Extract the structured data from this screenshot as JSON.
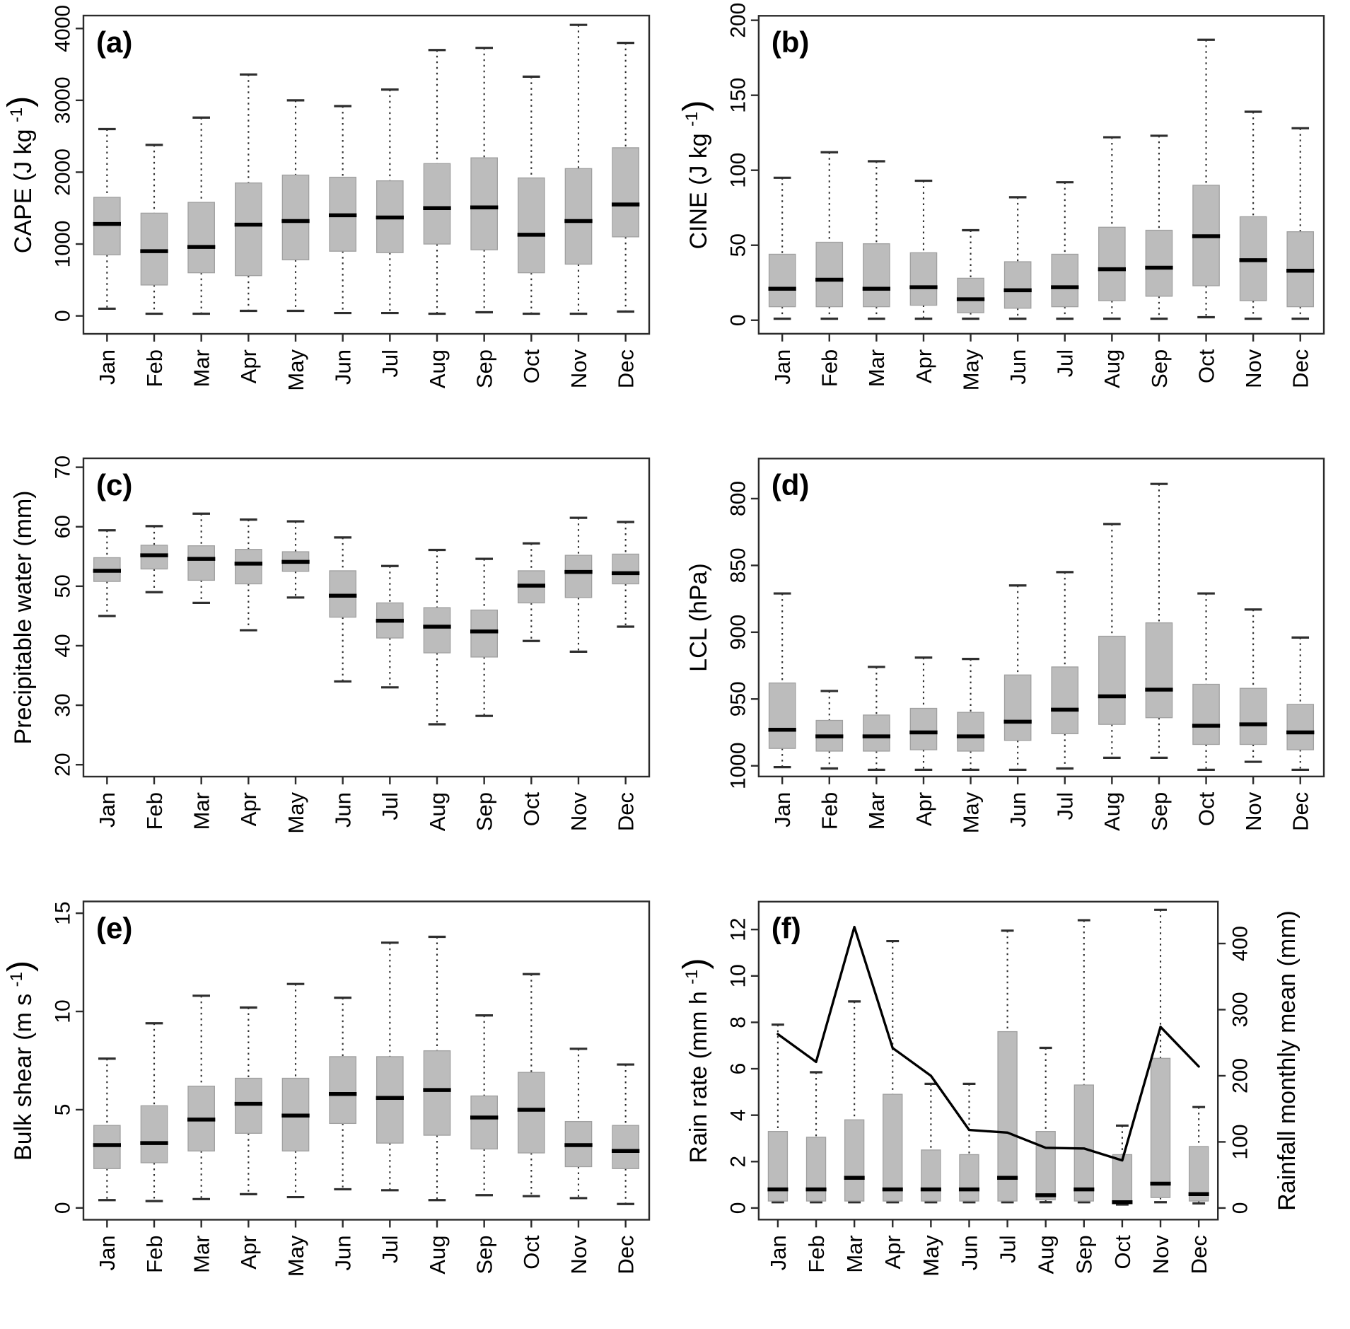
{
  "months": [
    "Jan",
    "Feb",
    "Mar",
    "Apr",
    "May",
    "Jun",
    "Jul",
    "Aug",
    "Sep",
    "Oct",
    "Nov",
    "Dec"
  ],
  "colors": {
    "box_fill": "#bcbcbc",
    "box_border": "#a0a0a0",
    "median": "#000000",
    "whisker": "#2e2e2e",
    "frame": "#2b2b2b",
    "line": "#000000"
  },
  "chart_data": [
    {
      "id": "a",
      "type": "boxplot",
      "panel_label": "(a)",
      "ylabel": {
        "pre": "CAPE (J kg ",
        "sup": "-1",
        "post": ")"
      },
      "yticks": [
        0,
        1000,
        2000,
        3000,
        4000
      ],
      "ylim": [
        0,
        4000
      ],
      "domain": [
        -250,
        4180
      ],
      "whisker_low": [
        100,
        30,
        30,
        70,
        70,
        40,
        40,
        30,
        50,
        30,
        30,
        60
      ],
      "q1": [
        850,
        430,
        600,
        560,
        780,
        900,
        880,
        1000,
        920,
        600,
        720,
        1100
      ],
      "median": [
        1280,
        900,
        960,
        1270,
        1320,
        1400,
        1370,
        1500,
        1510,
        1130,
        1320,
        1550
      ],
      "q3": [
        1650,
        1430,
        1580,
        1850,
        1960,
        1930,
        1880,
        2120,
        2200,
        1920,
        2050,
        2340
      ],
      "whisker_high": [
        2600,
        2380,
        2760,
        3360,
        3000,
        2920,
        3150,
        3700,
        3730,
        3330,
        4050,
        3800
      ]
    },
    {
      "id": "b",
      "type": "boxplot",
      "panel_label": "(b)",
      "ylabel": {
        "pre": "CINE (J kg ",
        "sup": "-1",
        "post": ")"
      },
      "yticks": [
        0,
        50,
        100,
        150,
        200
      ],
      "ylim": [
        0,
        200
      ],
      "domain": [
        -9,
        203
      ],
      "whisker_low": [
        1,
        1,
        1,
        1,
        1,
        1,
        1,
        1,
        1,
        2,
        1,
        1
      ],
      "q1": [
        9,
        9,
        9,
        10,
        5,
        8,
        9,
        13,
        16,
        23,
        13,
        9
      ],
      "median": [
        21,
        27,
        21,
        22,
        14,
        20,
        22,
        34,
        35,
        56,
        40,
        33
      ],
      "q3": [
        44,
        52,
        51,
        45,
        28,
        39,
        44,
        62,
        60,
        90,
        69,
        59
      ],
      "whisker_high": [
        95,
        112,
        106,
        93,
        60,
        82,
        92,
        122,
        123,
        187,
        139,
        128
      ]
    },
    {
      "id": "c",
      "type": "boxplot",
      "panel_label": "(c)",
      "ylabel": {
        "pre": "Precipitable water (mm)",
        "sup": "",
        "post": ""
      },
      "yticks": [
        20,
        30,
        40,
        50,
        60,
        70
      ],
      "ylim": [
        20,
        70
      ],
      "domain": [
        18,
        71.5
      ],
      "whisker_low": [
        45,
        49,
        47.2,
        42.6,
        48.1,
        34,
        33,
        26.8,
        28.2,
        40.8,
        39,
        43.2
      ],
      "q1": [
        50.8,
        52.9,
        51,
        50.4,
        52.5,
        44.8,
        41.3,
        38.8,
        38.1,
        47.2,
        48.1,
        50.4
      ],
      "median": [
        52.6,
        55.2,
        54.6,
        53.8,
        54.1,
        48.4,
        44.2,
        43.2,
        42.4,
        50.1,
        52.4,
        52.2
      ],
      "q3": [
        54.8,
        56.9,
        56.8,
        56.2,
        55.8,
        52.6,
        47.2,
        46.4,
        46,
        52.6,
        55.2,
        55.4
      ],
      "whisker_high": [
        59.4,
        60.1,
        62.2,
        61.2,
        60.9,
        58.2,
        53.4,
        56.1,
        54.6,
        57.2,
        61.5,
        60.8
      ]
    },
    {
      "id": "d",
      "type": "boxplot",
      "panel_label": "(d)",
      "ylabel": {
        "pre": "LCL (hPa)",
        "sup": "",
        "post": ""
      },
      "yticks": [
        800,
        850,
        900,
        950,
        1000
      ],
      "ylim": [
        1000,
        800
      ],
      "axis_reversed": true,
      "domain": [
        1008,
        770
      ],
      "whisker_low": [
        1001,
        1002,
        1003,
        1003,
        1003,
        1003,
        1002,
        994,
        994,
        1003,
        997,
        1003
      ],
      "q1": [
        987,
        989,
        989,
        988,
        989,
        981,
        976,
        969,
        964,
        984,
        984,
        988
      ],
      "median": [
        973,
        978,
        978,
        975,
        978,
        967,
        958,
        948,
        943,
        970,
        969,
        975
      ],
      "q3": [
        938,
        966,
        962,
        957,
        960,
        932,
        926,
        903,
        893,
        939,
        942,
        954
      ],
      "whisker_high": [
        871,
        944,
        926,
        919,
        920,
        865,
        855,
        819,
        789,
        871,
        883,
        904
      ]
    },
    {
      "id": "e",
      "type": "boxplot",
      "panel_label": "(e)",
      "ylabel": {
        "pre": "Bulk shear (m s ",
        "sup": "-1",
        "post": ")"
      },
      "yticks": [
        0,
        5,
        10,
        15
      ],
      "ylim": [
        0,
        15
      ],
      "domain": [
        -0.6,
        15.6
      ],
      "whisker_low": [
        0.4,
        0.35,
        0.45,
        0.7,
        0.55,
        0.95,
        0.9,
        0.4,
        0.65,
        0.6,
        0.5,
        0.2
      ],
      "q1": [
        2.0,
        2.3,
        2.9,
        3.8,
        2.9,
        4.3,
        3.3,
        3.7,
        3.0,
        2.8,
        2.1,
        2.0
      ],
      "median": [
        3.2,
        3.3,
        4.5,
        5.3,
        4.7,
        5.8,
        5.6,
        6.0,
        4.6,
        5.0,
        3.2,
        2.9
      ],
      "q3": [
        4.2,
        5.2,
        6.2,
        6.6,
        6.6,
        7.7,
        7.7,
        8.0,
        5.7,
        6.9,
        4.4,
        4.2
      ],
      "whisker_high": [
        7.6,
        9.4,
        10.8,
        10.2,
        11.4,
        10.7,
        13.5,
        13.8,
        9.8,
        11.9,
        8.1,
        7.3
      ]
    },
    {
      "id": "f",
      "type": "boxplot+line",
      "panel_label": "(f)",
      "ylabel": {
        "pre": "Rain rate (mm h ",
        "sup": "-1",
        "post": ")"
      },
      "yticks": [
        0,
        2,
        4,
        6,
        8,
        10,
        12
      ],
      "ylim": [
        0,
        12
      ],
      "domain": [
        -0.5,
        13.2
      ],
      "whisker_low": [
        0.25,
        0.25,
        0.25,
        0.25,
        0.25,
        0.25,
        0.25,
        0.25,
        0.25,
        0.15,
        0.25,
        0.2
      ],
      "q1": [
        0.3,
        0.3,
        0.3,
        0.3,
        0.3,
        0.3,
        0.3,
        0.35,
        0.3,
        0.2,
        0.45,
        0.3
      ],
      "median": [
        0.8,
        0.8,
        1.3,
        0.8,
        0.8,
        0.8,
        1.3,
        0.55,
        0.8,
        0.25,
        1.05,
        0.6
      ],
      "q3": [
        3.3,
        3.05,
        3.8,
        4.9,
        2.5,
        2.3,
        7.6,
        3.3,
        5.3,
        2.3,
        6.45,
        2.65
      ],
      "whisker_high": [
        7.9,
        5.85,
        8.9,
        11.5,
        5.35,
        5.35,
        11.95,
        6.9,
        12.4,
        3.55,
        12.85,
        4.35
      ],
      "line": {
        "name": "Rainfall monthly mean (mm)",
        "values_mm": [
          263,
          221,
          425,
          242,
          200,
          118,
          114,
          91,
          90,
          72,
          274,
          214
        ]
      },
      "right_axis": {
        "label": {
          "pre": "Rainfall monthly mean (mm)",
          "sup": "",
          "post": ""
        },
        "ticks_mm": [
          0,
          100,
          200,
          300,
          400
        ],
        "mm_per_left_unit": 35.1
      }
    }
  ]
}
